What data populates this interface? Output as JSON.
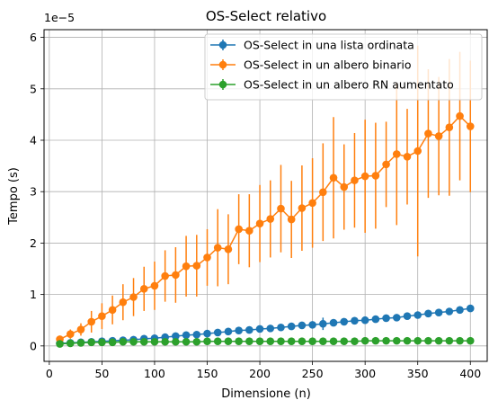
{
  "chart_data": {
    "type": "line",
    "title": "OS-Select relativo",
    "xlabel": "Dimensione (n)",
    "ylabel": "Tempo (s)",
    "y_offset_label": "1e−5",
    "xlim": [
      -5,
      416
    ],
    "ylim": [
      -0.3,
      6.15
    ],
    "xticks": [
      0,
      50,
      100,
      150,
      200,
      250,
      300,
      350,
      400
    ],
    "yticks": [
      0,
      1,
      2,
      3,
      4,
      5,
      6
    ],
    "grid": true,
    "legend_position": "top-right",
    "x": [
      10,
      20,
      30,
      40,
      50,
      60,
      70,
      80,
      90,
      100,
      110,
      120,
      130,
      140,
      150,
      160,
      170,
      180,
      190,
      200,
      210,
      220,
      230,
      240,
      250,
      260,
      270,
      280,
      290,
      300,
      310,
      320,
      330,
      340,
      350,
      360,
      370,
      380,
      390,
      400
    ],
    "series": [
      {
        "name": "OS-Select in una lista ordinata",
        "color": "#1f77b4",
        "values": [
          0.05,
          0.06,
          0.07,
          0.08,
          0.09,
          0.1,
          0.11,
          0.12,
          0.14,
          0.15,
          0.17,
          0.19,
          0.21,
          0.22,
          0.24,
          0.26,
          0.28,
          0.3,
          0.31,
          0.33,
          0.34,
          0.36,
          0.38,
          0.4,
          0.41,
          0.43,
          0.45,
          0.47,
          0.49,
          0.5,
          0.52,
          0.54,
          0.55,
          0.58,
          0.6,
          0.63,
          0.65,
          0.67,
          0.7,
          0.73
        ],
        "errors": [
          0.01,
          0.01,
          0.01,
          0.01,
          0.01,
          0.01,
          0.01,
          0.01,
          0.01,
          0.01,
          0.01,
          0.01,
          0.01,
          0.01,
          0.01,
          0.01,
          0.01,
          0.01,
          0.01,
          0.01,
          0.01,
          0.02,
          0.02,
          0.02,
          0.02,
          0.12,
          0.03,
          0.03,
          0.03,
          0.03,
          0.03,
          0.03,
          0.03,
          0.03,
          0.04,
          0.04,
          0.04,
          0.04,
          0.04,
          0.05
        ]
      },
      {
        "name": "OS-Select in un albero binario",
        "color": "#ff7f0e",
        "values": [
          0.13,
          0.23,
          0.32,
          0.47,
          0.58,
          0.7,
          0.85,
          0.95,
          1.11,
          1.17,
          1.36,
          1.38,
          1.55,
          1.56,
          1.72,
          1.91,
          1.88,
          2.27,
          2.24,
          2.38,
          2.47,
          2.67,
          2.46,
          2.68,
          2.78,
          2.99,
          3.27,
          3.09,
          3.22,
          3.3,
          3.31,
          3.53,
          3.73,
          3.68,
          3.79,
          4.13,
          4.08,
          4.25,
          4.47,
          4.27
        ],
        "errors": [
          0.06,
          0.09,
          0.12,
          0.21,
          0.25,
          0.28,
          0.35,
          0.37,
          0.43,
          0.47,
          0.5,
          0.54,
          0.59,
          0.6,
          0.55,
          0.75,
          0.68,
          0.68,
          0.71,
          0.75,
          0.75,
          0.85,
          0.75,
          0.83,
          0.87,
          0.95,
          1.18,
          0.83,
          0.92,
          1.1,
          1.03,
          0.83,
          1.38,
          0.93,
          2.05,
          1.25,
          1.15,
          1.33,
          1.25,
          1.28
        ]
      },
      {
        "name": "OS-Select in un albero RN aumentato",
        "color": "#2ca02c",
        "values": [
          0.04,
          0.05,
          0.06,
          0.07,
          0.07,
          0.07,
          0.08,
          0.08,
          0.08,
          0.08,
          0.08,
          0.08,
          0.08,
          0.08,
          0.09,
          0.09,
          0.09,
          0.09,
          0.09,
          0.09,
          0.09,
          0.09,
          0.09,
          0.09,
          0.09,
          0.09,
          0.09,
          0.09,
          0.09,
          0.1,
          0.1,
          0.1,
          0.1,
          0.1,
          0.1,
          0.1,
          0.1,
          0.1,
          0.1,
          0.1
        ],
        "errors": [
          0.01,
          0.01,
          0.01,
          0.01,
          0.01,
          0.01,
          0.01,
          0.01,
          0.01,
          0.01,
          0.01,
          0.01,
          0.01,
          0.01,
          0.01,
          0.01,
          0.01,
          0.01,
          0.01,
          0.01,
          0.01,
          0.01,
          0.01,
          0.01,
          0.01,
          0.01,
          0.01,
          0.01,
          0.01,
          0.01,
          0.01,
          0.01,
          0.01,
          0.01,
          0.01,
          0.01,
          0.01,
          0.01,
          0.01,
          0.01
        ]
      }
    ]
  }
}
